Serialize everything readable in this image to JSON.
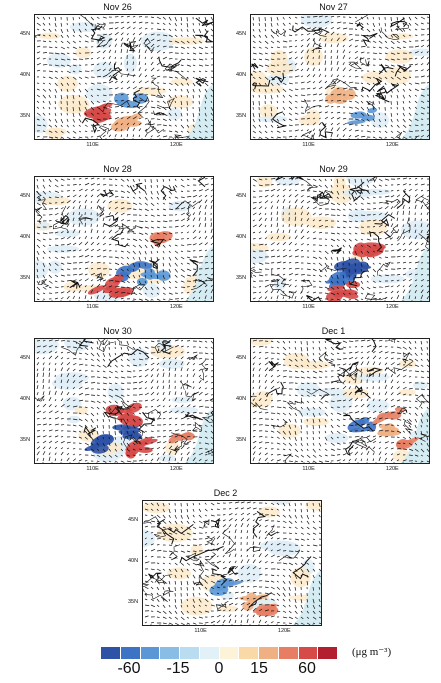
{
  "panels": [
    {
      "id": "nov26",
      "title": "Nov 26",
      "lat_labels": [
        "45N",
        "40N",
        "35N"
      ],
      "lon_labels": [
        "110E",
        "120E"
      ],
      "anomalies": [
        {
          "lat": 35.5,
          "lon": 111.5,
          "value": 60
        },
        {
          "lat": 34.0,
          "lon": 113.5,
          "value": 15
        },
        {
          "lat": 37,
          "lon": 115,
          "value": -15
        }
      ]
    },
    {
      "id": "nov27",
      "title": "Nov 27",
      "lat_labels": [
        "45N",
        "40N",
        "35N"
      ],
      "lon_labels": [
        "110E",
        "120E"
      ],
      "anomalies": [
        {
          "lat": 35.0,
          "lon": 117,
          "value": -15
        },
        {
          "lat": 37.5,
          "lon": 114,
          "value": 15
        }
      ]
    },
    {
      "id": "nov28",
      "title": "Nov 28",
      "lat_labels": [
        "45N",
        "40N",
        "35N"
      ],
      "lon_labels": [
        "110E",
        "120E"
      ],
      "anomalies": [
        {
          "lat": 36.0,
          "lon": 115,
          "value": -30
        },
        {
          "lat": 35.0,
          "lon": 117,
          "value": -15
        },
        {
          "lat": 33.5,
          "lon": 112,
          "value": 60
        },
        {
          "lat": 39.5,
          "lon": 117.5,
          "value": 30
        }
      ]
    },
    {
      "id": "nov29",
      "title": "Nov 29",
      "lat_labels": [
        "45N",
        "40N",
        "35N"
      ],
      "lon_labels": [
        "110E",
        "120E"
      ],
      "anomalies": [
        {
          "lat": 36.0,
          "lon": 115,
          "value": -60
        },
        {
          "lat": 34.5,
          "lon": 113,
          "value": -30
        },
        {
          "lat": 38.5,
          "lon": 117,
          "value": 60
        },
        {
          "lat": 33.5,
          "lon": 114.5,
          "value": 60
        }
      ]
    },
    {
      "id": "nov30",
      "title": "Nov 30",
      "lat_labels": [
        "45N",
        "40N",
        "35N"
      ],
      "lon_labels": [
        "110E",
        "120E"
      ],
      "anomalies": [
        {
          "lat": 36.0,
          "lon": 114,
          "value": -60
        },
        {
          "lat": 34.5,
          "lon": 111,
          "value": -60
        },
        {
          "lat": 38.0,
          "lon": 114,
          "value": 60
        },
        {
          "lat": 34.0,
          "lon": 116,
          "value": 60
        },
        {
          "lat": 35.0,
          "lon": 120,
          "value": 30
        }
      ]
    },
    {
      "id": "dec1",
      "title": "Dec 1",
      "lat_labels": [
        "45N",
        "40N",
        "35N"
      ],
      "lon_labels": [
        "110E",
        "120E"
      ],
      "anomalies": [
        {
          "lat": 37.0,
          "lon": 117,
          "value": -30
        },
        {
          "lat": 36.0,
          "lon": 119,
          "value": 15
        },
        {
          "lat": 34.0,
          "lon": 121,
          "value": 30
        },
        {
          "lat": 38.5,
          "lon": 120,
          "value": 30
        }
      ]
    },
    {
      "id": "dec2",
      "title": "Dec 2",
      "lat_labels": [
        "45N",
        "40N",
        "35N"
      ],
      "lon_labels": [
        "110E",
        "120E"
      ],
      "anomalies": [
        {
          "lat": 35.0,
          "lon": 116,
          "value": 15
        },
        {
          "lat": 37.0,
          "lon": 113,
          "value": -15
        },
        {
          "lat": 33.5,
          "lon": 118,
          "value": 30
        }
      ]
    }
  ],
  "colorbar": {
    "colors": [
      "#2e52a6",
      "#3d73c4",
      "#5b97d6",
      "#89bde6",
      "#b9dcf0",
      "#e2f1f8",
      "#fdf3d8",
      "#f8d9a7",
      "#efb083",
      "#e77e64",
      "#d64a48",
      "#b41f2f"
    ],
    "tick_labels": [
      "-60",
      "-15",
      "0",
      "15",
      "60"
    ],
    "units": "(μg m⁻³)"
  },
  "colors": {
    "ocean": "#d6ecf3",
    "land": "#ffffff",
    "wind": "#111111",
    "coast": "#111111"
  }
}
